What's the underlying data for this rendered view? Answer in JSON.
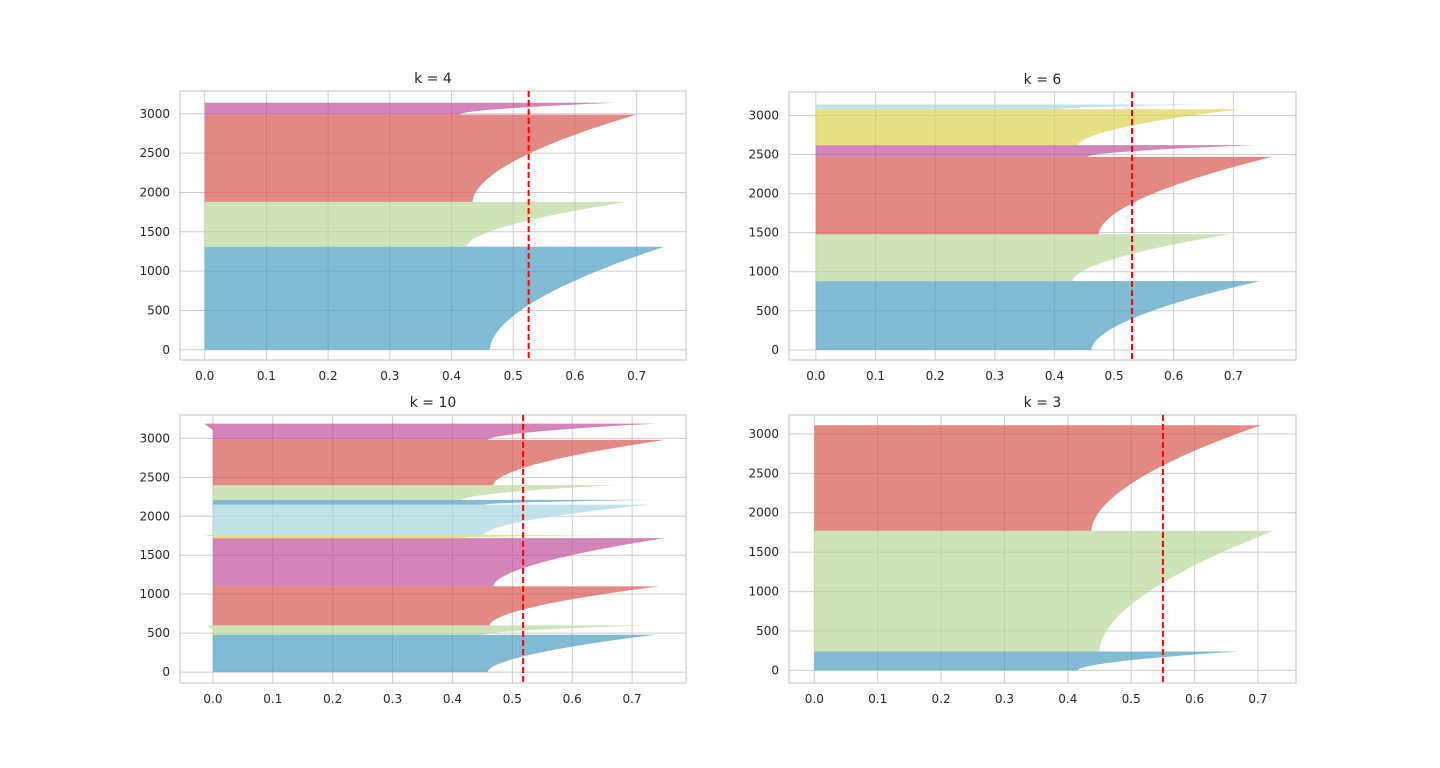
{
  "chart_data": [
    {
      "type": "area",
      "title": "k = 4",
      "xlim": [
        -0.04,
        0.78
      ],
      "ylim": [
        -130,
        3290
      ],
      "xticks": [
        0.0,
        0.1,
        0.2,
        0.3,
        0.4,
        0.5,
        0.6,
        0.7
      ],
      "yticks": [
        0,
        500,
        1000,
        1500,
        2000,
        2500,
        3000
      ],
      "grid": true,
      "average_silhouette": 0.525,
      "clusters": [
        {
          "y_start": 0,
          "y_end": 1310,
          "min": 0.0,
          "max": 0.745,
          "color": "#4c9cc0"
        },
        {
          "y_start": 1310,
          "y_end": 1880,
          "min": 0.0,
          "max": 0.685,
          "color": "#b9d799"
        },
        {
          "y_start": 1880,
          "y_end": 2990,
          "min": 0.0,
          "max": 0.7,
          "color": "#d95550"
        },
        {
          "y_start": 2990,
          "y_end": 3140,
          "min": 0.0,
          "max": 0.665,
          "color": "#c0509a"
        }
      ]
    },
    {
      "type": "area",
      "title": "k = 6",
      "xlim": [
        -0.045,
        0.805
      ],
      "ylim": [
        -130,
        3300
      ],
      "xticks": [
        0.0,
        0.1,
        0.2,
        0.3,
        0.4,
        0.5,
        0.6,
        0.7
      ],
      "yticks": [
        0,
        500,
        1000,
        1500,
        2000,
        2500,
        3000
      ],
      "grid": true,
      "average_silhouette": 0.53,
      "clusters": [
        {
          "y_start": 0,
          "y_end": 880,
          "min": 0.0,
          "max": 0.745,
          "color": "#4c9cc0"
        },
        {
          "y_start": 880,
          "y_end": 1480,
          "min": 0.0,
          "max": 0.695,
          "color": "#b9d799"
        },
        {
          "y_start": 1480,
          "y_end": 2470,
          "min": 0.0,
          "max": 0.765,
          "color": "#d95550"
        },
        {
          "y_start": 2470,
          "y_end": 2620,
          "min": 0.0,
          "max": 0.735,
          "color": "#c0509a"
        },
        {
          "y_start": 2620,
          "y_end": 3080,
          "min": 0.0,
          "max": 0.71,
          "color": "#e0d24e"
        },
        {
          "y_start": 3080,
          "y_end": 3140,
          "min": 0.0,
          "max": 0.66,
          "color": "#a6d6e0"
        }
      ]
    },
    {
      "type": "area",
      "title": "k = 10",
      "xlim": [
        -0.055,
        0.79
      ],
      "ylim": [
        -140,
        3300
      ],
      "xticks": [
        0.0,
        0.1,
        0.2,
        0.3,
        0.4,
        0.5,
        0.6,
        0.7
      ],
      "yticks": [
        0,
        500,
        1000,
        1500,
        2000,
        2500,
        3000
      ],
      "grid": true,
      "average_silhouette": 0.518,
      "clusters": [
        {
          "y_start": 0,
          "y_end": 480,
          "min": 0.0,
          "max": 0.74,
          "color": "#4c9cc0"
        },
        {
          "y_start": 480,
          "y_end": 600,
          "min": -0.01,
          "max": 0.73,
          "color": "#b9d799"
        },
        {
          "y_start": 600,
          "y_end": 1100,
          "min": 0.0,
          "max": 0.745,
          "color": "#d95550"
        },
        {
          "y_start": 1100,
          "y_end": 1720,
          "min": 0.0,
          "max": 0.755,
          "color": "#c0509a"
        },
        {
          "y_start": 1720,
          "y_end": 1760,
          "min": -0.015,
          "max": 0.66,
          "color": "#e0d24e"
        },
        {
          "y_start": 1760,
          "y_end": 2150,
          "min": 0.0,
          "max": 0.73,
          "color": "#a6d6e0"
        },
        {
          "y_start": 2150,
          "y_end": 2210,
          "min": 0.0,
          "max": 0.73,
          "color": "#4c9cc0"
        },
        {
          "y_start": 2210,
          "y_end": 2400,
          "min": 0.0,
          "max": 0.67,
          "color": "#b9d799"
        },
        {
          "y_start": 2400,
          "y_end": 2980,
          "min": 0.0,
          "max": 0.755,
          "color": "#d95550"
        },
        {
          "y_start": 2980,
          "y_end": 3190,
          "min": -0.015,
          "max": 0.74,
          "color": "#c0509a"
        }
      ]
    },
    {
      "type": "area",
      "title": "k = 3",
      "xlim": [
        -0.04,
        0.76
      ],
      "ylim": [
        -160,
        3240
      ],
      "xticks": [
        0.0,
        0.1,
        0.2,
        0.3,
        0.4,
        0.5,
        0.6,
        0.7
      ],
      "yticks": [
        0,
        500,
        1000,
        1500,
        2000,
        2500,
        3000
      ],
      "grid": true,
      "average_silhouette": 0.55,
      "clusters": [
        {
          "y_start": 0,
          "y_end": 240,
          "min": 0.0,
          "max": 0.67,
          "color": "#4c9cc0"
        },
        {
          "y_start": 240,
          "y_end": 1770,
          "min": 0.0,
          "max": 0.725,
          "color": "#b9d799"
        },
        {
          "y_start": 1770,
          "y_end": 3110,
          "min": 0.0,
          "max": 0.705,
          "color": "#d95550"
        }
      ]
    }
  ]
}
